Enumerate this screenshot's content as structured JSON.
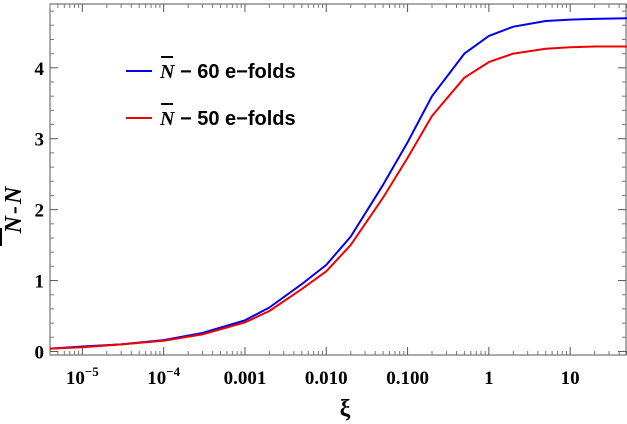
{
  "chart_data": {
    "type": "line",
    "xlabel": "ξ",
    "ylabel_parts": [
      "N",
      "-",
      "N"
    ],
    "x_scale": "log",
    "xlim": [
      4e-06,
      50
    ],
    "ylim": [
      -0.05,
      4.9
    ],
    "x_ticks": [
      {
        "value": 1e-05,
        "label": "10",
        "exp": "−5"
      },
      {
        "value": 0.0001,
        "label": "10",
        "exp": "−4"
      },
      {
        "value": 0.001,
        "label": "0.001",
        "exp": ""
      },
      {
        "value": 0.01,
        "label": "0.010",
        "exp": ""
      },
      {
        "value": 0.1,
        "label": "0.100",
        "exp": ""
      },
      {
        "value": 1,
        "label": "1",
        "exp": ""
      },
      {
        "value": 10,
        "label": "10",
        "exp": ""
      }
    ],
    "y_ticks": [
      0,
      1,
      2,
      3,
      4
    ],
    "grid": false,
    "legend_position": "top-left",
    "series": [
      {
        "name": "N − 60 e−folds",
        "name_symbol": "N",
        "name_suffix": " − 60 e−folds",
        "color": "#0000ee",
        "x": [
          4e-06,
          1e-05,
          3e-05,
          0.0001,
          0.0003,
          0.001,
          0.002,
          0.005,
          0.01,
          0.02,
          0.05,
          0.1,
          0.2,
          0.5,
          1,
          2,
          5,
          10,
          20,
          50
        ],
        "y": [
          0.04,
          0.07,
          0.1,
          0.16,
          0.26,
          0.44,
          0.62,
          0.95,
          1.22,
          1.62,
          2.35,
          2.95,
          3.6,
          4.2,
          4.45,
          4.58,
          4.66,
          4.68,
          4.69,
          4.7
        ]
      },
      {
        "name": "N − 50 e−folds",
        "name_symbol": "N",
        "name_suffix": " − 50 e−folds",
        "color": "#ee0000",
        "x": [
          4e-06,
          1e-05,
          3e-05,
          0.0001,
          0.0003,
          0.001,
          0.002,
          0.005,
          0.01,
          0.02,
          0.05,
          0.1,
          0.2,
          0.5,
          1,
          2,
          5,
          10,
          20,
          50
        ],
        "y": [
          0.04,
          0.06,
          0.1,
          0.15,
          0.24,
          0.41,
          0.57,
          0.88,
          1.13,
          1.5,
          2.17,
          2.73,
          3.32,
          3.86,
          4.08,
          4.2,
          4.27,
          4.29,
          4.3,
          4.3
        ]
      }
    ]
  }
}
